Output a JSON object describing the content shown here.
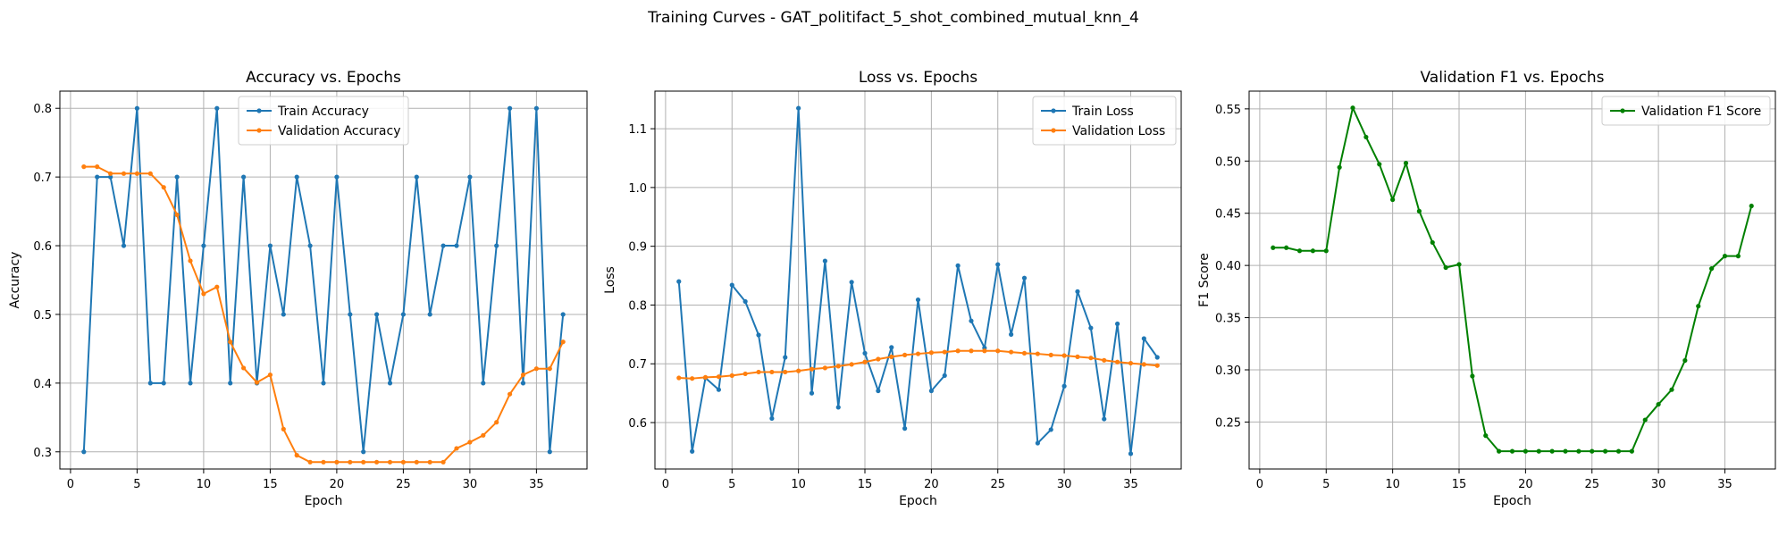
{
  "figure": {
    "title": "Training Curves - GAT_politifact_5_shot_combined_mutual_knn_4"
  },
  "colors": {
    "train": "#1f77b4",
    "validation": "#ff7f0e",
    "f1": "#008000",
    "grid": "#b0b0b0"
  },
  "chart_data": [
    {
      "type": "line",
      "title": "Accuracy vs. Epochs",
      "xlabel": "Epoch",
      "ylabel": "Accuracy",
      "xlim": [
        -0.8,
        38.8
      ],
      "ylim": [
        0.275,
        0.825
      ],
      "xticks": [
        0,
        5,
        10,
        15,
        20,
        25,
        30,
        35
      ],
      "yticks": [
        0.3,
        0.4,
        0.5,
        0.6,
        0.7,
        0.8
      ],
      "ytick_decimals": 1,
      "grid": true,
      "legend_position": "upper center",
      "x": [
        1,
        2,
        3,
        4,
        5,
        6,
        7,
        8,
        9,
        10,
        11,
        12,
        13,
        14,
        15,
        16,
        17,
        18,
        19,
        20,
        21,
        22,
        23,
        24,
        25,
        26,
        27,
        28,
        29,
        30,
        31,
        32,
        33,
        34,
        35,
        36,
        37
      ],
      "series": [
        {
          "name": "Train Accuracy",
          "color_key": "train",
          "values": [
            0.3,
            0.7,
            0.7,
            0.6,
            0.8,
            0.4,
            0.4,
            0.7,
            0.4,
            0.6,
            0.8,
            0.4,
            0.7,
            0.4,
            0.6,
            0.5,
            0.7,
            0.6,
            0.4,
            0.7,
            0.5,
            0.3,
            0.5,
            0.4,
            0.5,
            0.7,
            0.5,
            0.6,
            0.6,
            0.7,
            0.4,
            0.6,
            0.8,
            0.4,
            0.8,
            0.3,
            0.5
          ]
        },
        {
          "name": "Validation Accuracy",
          "color_key": "validation",
          "values": [
            0.715,
            0.715,
            0.705,
            0.705,
            0.705,
            0.705,
            0.685,
            0.645,
            0.578,
            0.53,
            0.54,
            0.46,
            0.422,
            0.401,
            0.412,
            0.333,
            0.295,
            0.285,
            0.285,
            0.285,
            0.285,
            0.285,
            0.285,
            0.285,
            0.285,
            0.285,
            0.285,
            0.285,
            0.305,
            0.314,
            0.324,
            0.343,
            0.384,
            0.412,
            0.421,
            0.421,
            0.46
          ]
        }
      ]
    },
    {
      "type": "line",
      "title": "Loss vs. Epochs",
      "xlabel": "Epoch",
      "ylabel": "Loss",
      "xlim": [
        -0.8,
        38.8
      ],
      "ylim": [
        0.521,
        1.164
      ],
      "xticks": [
        0,
        5,
        10,
        15,
        20,
        25,
        30,
        35
      ],
      "yticks": [
        0.6,
        0.7,
        0.8,
        0.9,
        1.0,
        1.1
      ],
      "ytick_decimals": 1,
      "grid": true,
      "legend_position": "upper right",
      "x": [
        1,
        2,
        3,
        4,
        5,
        6,
        7,
        8,
        9,
        10,
        11,
        12,
        13,
        14,
        15,
        16,
        17,
        18,
        19,
        20,
        21,
        22,
        23,
        24,
        25,
        26,
        27,
        28,
        29,
        30,
        31,
        32,
        33,
        34,
        35,
        36,
        37
      ],
      "series": [
        {
          "name": "Train Loss",
          "color_key": "train",
          "values": [
            0.84,
            0.551,
            0.676,
            0.656,
            0.834,
            0.806,
            0.749,
            0.607,
            0.711,
            1.135,
            0.65,
            0.875,
            0.626,
            0.839,
            0.718,
            0.654,
            0.728,
            0.59,
            0.809,
            0.654,
            0.68,
            0.867,
            0.773,
            0.727,
            0.869,
            0.75,
            0.846,
            0.565,
            0.588,
            0.662,
            0.823,
            0.761,
            0.606,
            0.768,
            0.547,
            0.743,
            0.711
          ]
        },
        {
          "name": "Validation Loss",
          "color_key": "validation",
          "values": [
            0.676,
            0.675,
            0.677,
            0.678,
            0.68,
            0.683,
            0.686,
            0.686,
            0.686,
            0.688,
            0.691,
            0.693,
            0.696,
            0.699,
            0.703,
            0.708,
            0.712,
            0.715,
            0.717,
            0.719,
            0.72,
            0.722,
            0.722,
            0.722,
            0.722,
            0.72,
            0.718,
            0.717,
            0.715,
            0.714,
            0.712,
            0.71,
            0.706,
            0.703,
            0.701,
            0.699,
            0.697
          ]
        }
      ]
    },
    {
      "type": "line",
      "title": "Validation F1 vs. Epochs",
      "xlabel": "Epoch",
      "ylabel": "F1 Score",
      "xlim": [
        -0.8,
        38.8
      ],
      "ylim": [
        0.205,
        0.567
      ],
      "xticks": [
        0,
        5,
        10,
        15,
        20,
        25,
        30,
        35
      ],
      "yticks": [
        0.25,
        0.3,
        0.35,
        0.4,
        0.45,
        0.5,
        0.55
      ],
      "ytick_decimals": 2,
      "grid": true,
      "legend_position": "upper right",
      "x": [
        1,
        2,
        3,
        4,
        5,
        6,
        7,
        8,
        9,
        10,
        11,
        12,
        13,
        14,
        15,
        16,
        17,
        18,
        19,
        20,
        21,
        22,
        23,
        24,
        25,
        26,
        27,
        28,
        29,
        30,
        31,
        32,
        33,
        34,
        35,
        36,
        37
      ],
      "series": [
        {
          "name": "Validation F1 Score",
          "color_key": "f1",
          "values": [
            0.417,
            0.417,
            0.414,
            0.414,
            0.414,
            0.494,
            0.551,
            0.523,
            0.497,
            0.463,
            0.498,
            0.452,
            0.422,
            0.398,
            0.401,
            0.294,
            0.237,
            0.222,
            0.222,
            0.222,
            0.222,
            0.222,
            0.222,
            0.222,
            0.222,
            0.222,
            0.222,
            0.222,
            0.252,
            0.267,
            0.281,
            0.309,
            0.361,
            0.397,
            0.409,
            0.409,
            0.457
          ]
        }
      ]
    }
  ]
}
